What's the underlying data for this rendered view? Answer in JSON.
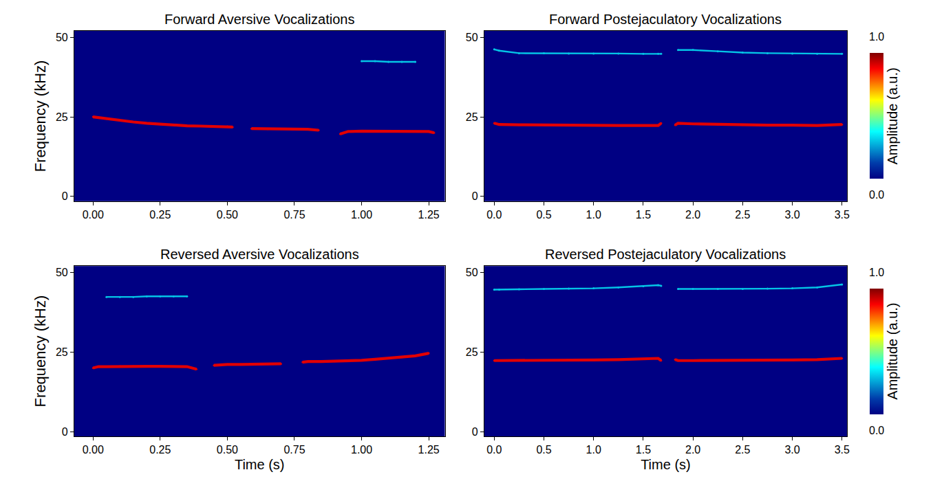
{
  "chart_data": [
    {
      "type": "line",
      "title": "Forward Aversive Vocalizations",
      "ylabel": "Frequency (kHz)",
      "xlim": [
        -0.07,
        1.31
      ],
      "xticks": [
        {
          "value": 0,
          "label": "0.00"
        },
        {
          "value": 0.25,
          "label": "0.25"
        },
        {
          "value": 0.5,
          "label": "0.50"
        },
        {
          "value": 0.75,
          "label": "0.75"
        },
        {
          "value": 1,
          "label": "1.00"
        },
        {
          "value": 1.25,
          "label": "1.25"
        }
      ],
      "ylim": [
        -1.5,
        52
      ],
      "yticks": [
        0,
        25,
        50
      ],
      "x": [
        0,
        0.05,
        0.1,
        0.15,
        0.2,
        0.25,
        0.3,
        0.35,
        0.4,
        0.45,
        0.5,
        0.52,
        0.555,
        0.59,
        0.65,
        0.7,
        0.75,
        0.8,
        0.84,
        0.88,
        0.92,
        0.95,
        1.0,
        1.05,
        1.1,
        1.15,
        1.2,
        1.25,
        1.27
      ],
      "series": [
        {
          "amplitude": 0.9,
          "values": [
            25,
            24.4,
            23.8,
            23.4,
            23.0,
            22.7,
            22.4,
            22.2,
            22.1,
            22.0,
            22.0,
            21.8,
            null,
            21.3,
            21.2,
            21.2,
            21.1,
            21.1,
            20.8,
            null,
            19.6,
            20.4,
            20.5,
            20.5,
            20.5,
            20.4,
            20.4,
            20.4,
            20.0
          ]
        },
        {
          "amplitude": 0.3,
          "values": [
            null,
            null,
            null,
            null,
            null,
            null,
            null,
            null,
            null,
            null,
            null,
            null,
            null,
            null,
            null,
            null,
            null,
            null,
            null,
            null,
            null,
            null,
            42.5,
            42.5,
            42.3,
            42.3,
            42.3,
            null,
            null
          ]
        }
      ]
    },
    {
      "type": "line",
      "title": "Forward Postejaculatory Vocalizations",
      "xlim": [
        -0.1,
        3.55
      ],
      "xticks": [
        {
          "value": 0,
          "label": "0.0"
        },
        {
          "value": 0.5,
          "label": "0.5"
        },
        {
          "value": 1,
          "label": "1.0"
        },
        {
          "value": 1.5,
          "label": "1.5"
        },
        {
          "value": 2,
          "label": "2.0"
        },
        {
          "value": 2.5,
          "label": "2.5"
        },
        {
          "value": 3,
          "label": "3.0"
        },
        {
          "value": 3.5,
          "label": "3.5"
        }
      ],
      "ylim": [
        -1.5,
        52
      ],
      "yticks": [
        0,
        25,
        50
      ],
      "x": [
        0,
        0.05,
        0.25,
        0.5,
        0.75,
        1.0,
        1.25,
        1.5,
        1.65,
        1.68,
        1.75,
        1.82,
        1.85,
        2.0,
        2.25,
        2.5,
        2.75,
        3.0,
        3.25,
        3.5
      ],
      "series": [
        {
          "amplitude": 0.9,
          "values": [
            23.0,
            22.6,
            22.5,
            22.4,
            22.4,
            22.3,
            22.3,
            22.3,
            22.3,
            23.0,
            null,
            22.4,
            23.0,
            22.8,
            22.6,
            22.5,
            22.4,
            22.4,
            22.3,
            22.6
          ]
        },
        {
          "amplitude": 0.3,
          "values": [
            46.2,
            45.8,
            45.0,
            45.0,
            44.9,
            44.9,
            44.9,
            44.8,
            44.8,
            44.8,
            null,
            null,
            46.0,
            46.0,
            45.6,
            45.2,
            45.0,
            44.9,
            44.8,
            44.8
          ]
        }
      ],
      "colorbar": {
        "title": "Amplitude (a.u.)",
        "range": [
          0,
          1
        ],
        "ticks": [
          {
            "value": 0,
            "label": "0.0"
          },
          {
            "value": 1,
            "label": "1.0"
          }
        ]
      }
    },
    {
      "type": "line",
      "title": "Reversed Aversive Vocalizations",
      "xlabel": "Time (s)",
      "ylabel": "Frequency (kHz)",
      "xlim": [
        -0.07,
        1.31
      ],
      "xticks": [
        {
          "value": 0,
          "label": "0.00"
        },
        {
          "value": 0.25,
          "label": "0.25"
        },
        {
          "value": 0.5,
          "label": "0.50"
        },
        {
          "value": 0.75,
          "label": "0.75"
        },
        {
          "value": 1,
          "label": "1.00"
        },
        {
          "value": 1.25,
          "label": "1.25"
        }
      ],
      "ylim": [
        -1.5,
        52
      ],
      "yticks": [
        0,
        25,
        50
      ],
      "x": [
        0,
        0.02,
        0.05,
        0.1,
        0.15,
        0.2,
        0.25,
        0.3,
        0.35,
        0.385,
        0.42,
        0.45,
        0.5,
        0.55,
        0.6,
        0.65,
        0.7,
        0.74,
        0.78,
        0.8,
        0.85,
        0.9,
        0.95,
        1.0,
        1.05,
        1.1,
        1.15,
        1.2,
        1.25
      ],
      "series": [
        {
          "amplitude": 0.9,
          "values": [
            20.0,
            20.4,
            20.4,
            20.5,
            20.5,
            20.5,
            20.5,
            20.4,
            20.4,
            19.6,
            null,
            20.8,
            21.1,
            21.1,
            21.2,
            21.2,
            21.3,
            null,
            21.8,
            22.0,
            22.0,
            22.1,
            22.2,
            22.4,
            22.7,
            23.0,
            23.4,
            23.8,
            24.6
          ]
        },
        {
          "amplitude": 0.3,
          "values": [
            null,
            null,
            42.3,
            42.3,
            42.3,
            42.5,
            42.5,
            42.5,
            42.5,
            null,
            null,
            null,
            null,
            null,
            null,
            null,
            null,
            null,
            null,
            null,
            null,
            null,
            null,
            null,
            null,
            null,
            null,
            null,
            null
          ]
        }
      ]
    },
    {
      "type": "line",
      "title": "Reversed Postejaculatory Vocalizations",
      "xlabel": "Time (s)",
      "xlim": [
        -0.1,
        3.55
      ],
      "xticks": [
        {
          "value": 0,
          "label": "0.0"
        },
        {
          "value": 0.5,
          "label": "0.5"
        },
        {
          "value": 1,
          "label": "1.0"
        },
        {
          "value": 1.5,
          "label": "1.5"
        },
        {
          "value": 2,
          "label": "2.0"
        },
        {
          "value": 2.5,
          "label": "2.5"
        },
        {
          "value": 3,
          "label": "3.0"
        },
        {
          "value": 3.5,
          "label": "3.5"
        }
      ],
      "ylim": [
        -1.5,
        52
      ],
      "yticks": [
        0,
        25,
        50
      ],
      "x": [
        0,
        0.05,
        0.25,
        0.5,
        0.75,
        1.0,
        1.25,
        1.5,
        1.65,
        1.68,
        1.75,
        1.82,
        1.85,
        2.0,
        2.25,
        2.5,
        2.75,
        3.0,
        3.25,
        3.5
      ],
      "series": [
        {
          "amplitude": 0.9,
          "values": [
            22.3,
            22.3,
            22.3,
            22.4,
            22.4,
            22.5,
            22.6,
            22.8,
            23.0,
            22.3,
            null,
            22.6,
            22.3,
            22.3,
            22.3,
            22.4,
            22.4,
            22.5,
            22.6,
            23.0
          ]
        },
        {
          "amplitude": 0.3,
          "values": [
            44.6,
            44.6,
            44.7,
            44.8,
            44.9,
            45.0,
            45.3,
            45.7,
            46.0,
            45.8,
            null,
            null,
            44.8,
            44.8,
            44.8,
            44.8,
            44.9,
            45.0,
            45.3,
            46.2
          ]
        }
      ],
      "colorbar": {
        "title": "Amplitude (a.u.)",
        "range": [
          0,
          1
        ],
        "ticks": [
          {
            "value": 0,
            "label": "0.0"
          },
          {
            "value": 1,
            "label": "1.0"
          }
        ]
      }
    }
  ]
}
